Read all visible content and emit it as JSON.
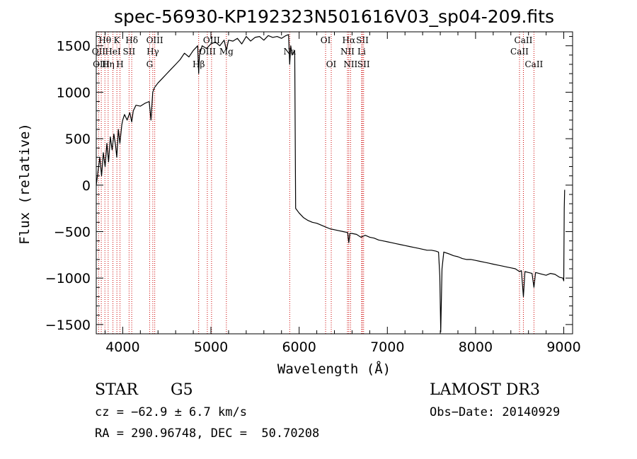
{
  "chart_data": {
    "type": "line",
    "title": "spec-56930-KP192323N501616V03_sp04-209.fits",
    "xlabel": "Wavelength (Å)",
    "ylabel": "Flux (relative)",
    "xlim": [
      3700,
      9100
    ],
    "ylim": [
      -1600,
      1650
    ],
    "xticks": [
      4000,
      5000,
      6000,
      7000,
      8000,
      9000
    ],
    "yticks": [
      -1500,
      -1000,
      -500,
      0,
      500,
      1000,
      1500
    ],
    "line_color": "#000000",
    "marker_color": "#cc0000",
    "series": [
      {
        "name": "flux",
        "x": [
          3700,
          3720,
          3740,
          3760,
          3780,
          3800,
          3820,
          3840,
          3860,
          3880,
          3900,
          3920,
          3933,
          3950,
          3968,
          3990,
          4000,
          4020,
          4050,
          4080,
          4102,
          4120,
          4150,
          4200,
          4250,
          4300,
          4320,
          4340,
          4360,
          4400,
          4450,
          4500,
          4550,
          4600,
          4650,
          4700,
          4750,
          4800,
          4850,
          4861,
          4870,
          4900,
          4950,
          5000,
          5050,
          5100,
          5150,
          5175,
          5200,
          5250,
          5300,
          5350,
          5400,
          5450,
          5500,
          5550,
          5600,
          5650,
          5700,
          5750,
          5800,
          5850,
          5880,
          5893,
          5905,
          5920,
          5950,
          5960,
          6000,
          6050,
          6100,
          6150,
          6200,
          6250,
          6300,
          6350,
          6400,
          6450,
          6500,
          6550,
          6563,
          6575,
          6600,
          6650,
          6700,
          6750,
          6800,
          6850,
          6900,
          6950,
          7000,
          7050,
          7100,
          7150,
          7200,
          7250,
          7300,
          7350,
          7400,
          7450,
          7500,
          7550,
          7580,
          7595,
          7605,
          7620,
          7640,
          7700,
          7750,
          7800,
          7850,
          7900,
          7950,
          8000,
          8050,
          8100,
          8150,
          8200,
          8250,
          8300,
          8350,
          8400,
          8450,
          8498,
          8520,
          8542,
          8560,
          8600,
          8640,
          8662,
          8680,
          8720,
          8760,
          8800,
          8850,
          8900,
          8950,
          8990,
          9000,
          9005,
          9010
        ],
        "y": [
          0,
          150,
          300,
          100,
          350,
          200,
          450,
          250,
          520,
          380,
          550,
          420,
          300,
          600,
          450,
          650,
          700,
          760,
          700,
          780,
          680,
          800,
          860,
          850,
          880,
          900,
          700,
          1000,
          1050,
          1100,
          1150,
          1200,
          1250,
          1300,
          1350,
          1420,
          1380,
          1450,
          1500,
          1200,
          1400,
          1500,
          1470,
          1520,
          1540,
          1500,
          1560,
          1450,
          1560,
          1550,
          1580,
          1520,
          1600,
          1550,
          1590,
          1600,
          1560,
          1610,
          1590,
          1600,
          1580,
          1610,
          1620,
          1300,
          1500,
          1400,
          1450,
          -250,
          -300,
          -350,
          -380,
          -400,
          -410,
          -430,
          -450,
          -470,
          -480,
          -490,
          -500,
          -510,
          -620,
          -520,
          -520,
          -530,
          -560,
          -540,
          -560,
          -570,
          -590,
          -600,
          -610,
          -620,
          -630,
          -640,
          -650,
          -660,
          -670,
          -680,
          -690,
          -700,
          -700,
          -710,
          -720,
          -980,
          -1580,
          -900,
          -720,
          -740,
          -760,
          -770,
          -790,
          -800,
          -800,
          -810,
          -820,
          -830,
          -840,
          -850,
          -860,
          -870,
          -880,
          -890,
          -900,
          -930,
          -920,
          -1200,
          -930,
          -940,
          -950,
          -1100,
          -940,
          -950,
          -960,
          -970,
          -950,
          -960,
          -990,
          -1000,
          -1030,
          -250,
          -50
        ]
      }
    ],
    "line_markers": [
      {
        "label": "Hθ",
        "wavelength": 3798,
        "row": 1
      },
      {
        "label": "OII",
        "wavelength": 3727,
        "row": 2
      },
      {
        "label": "OIII",
        "wavelength": 3757,
        "row": 3
      },
      {
        "label": "K",
        "wavelength": 3934,
        "row": 1
      },
      {
        "label": "HeI",
        "wavelength": 3889,
        "row": 2
      },
      {
        "label": "Hη",
        "wavelength": 3835,
        "row": 3
      },
      {
        "label": "Hδ",
        "wavelength": 4102,
        "row": 1
      },
      {
        "label": "SII",
        "wavelength": 4072,
        "row": 2
      },
      {
        "label": "H",
        "wavelength": 3969,
        "row": 3
      },
      {
        "label": "OIII",
        "wavelength": 4363,
        "row": 1
      },
      {
        "label": "Hγ",
        "wavelength": 4341,
        "row": 2
      },
      {
        "label": "G",
        "wavelength": 4305,
        "row": 3
      },
      {
        "label": "OIII",
        "wavelength": 5007,
        "row": 1
      },
      {
        "label": "OIII",
        "wavelength": 4959,
        "row": 2
      },
      {
        "label": "Hβ",
        "wavelength": 4861,
        "row": 3
      },
      {
        "label": "Mg",
        "wavelength": 5175,
        "row": 2
      },
      {
        "label": "Na",
        "wavelength": 5893,
        "row": 2
      },
      {
        "label": "OI",
        "wavelength": 6300,
        "row": 1
      },
      {
        "label": "OI",
        "wavelength": 6364,
        "row": 3
      },
      {
        "label": "Hα",
        "wavelength": 6563,
        "row": 1
      },
      {
        "label": "SII",
        "wavelength": 6717,
        "row": 1
      },
      {
        "label": "NII",
        "wavelength": 6548,
        "row": 2
      },
      {
        "label": "Li",
        "wavelength": 6708,
        "row": 2
      },
      {
        "label": "NII",
        "wavelength": 6583,
        "row": 3
      },
      {
        "label": "SII",
        "wavelength": 6731,
        "row": 3
      },
      {
        "label": "CaII",
        "wavelength": 8542,
        "row": 1
      },
      {
        "label": "CaII",
        "wavelength": 8498,
        "row": 2
      },
      {
        "label": "CaII",
        "wavelength": 8662,
        "row": 3
      }
    ]
  },
  "info": {
    "class": "STAR",
    "subclass": "G5",
    "survey": "LAMOST DR3",
    "cz": "cz = −62.9 ± 6.7 km/s",
    "obs_date": "Obs−Date: 20140929",
    "coords": "RA = 290.96748, DEC =  50.70208"
  }
}
